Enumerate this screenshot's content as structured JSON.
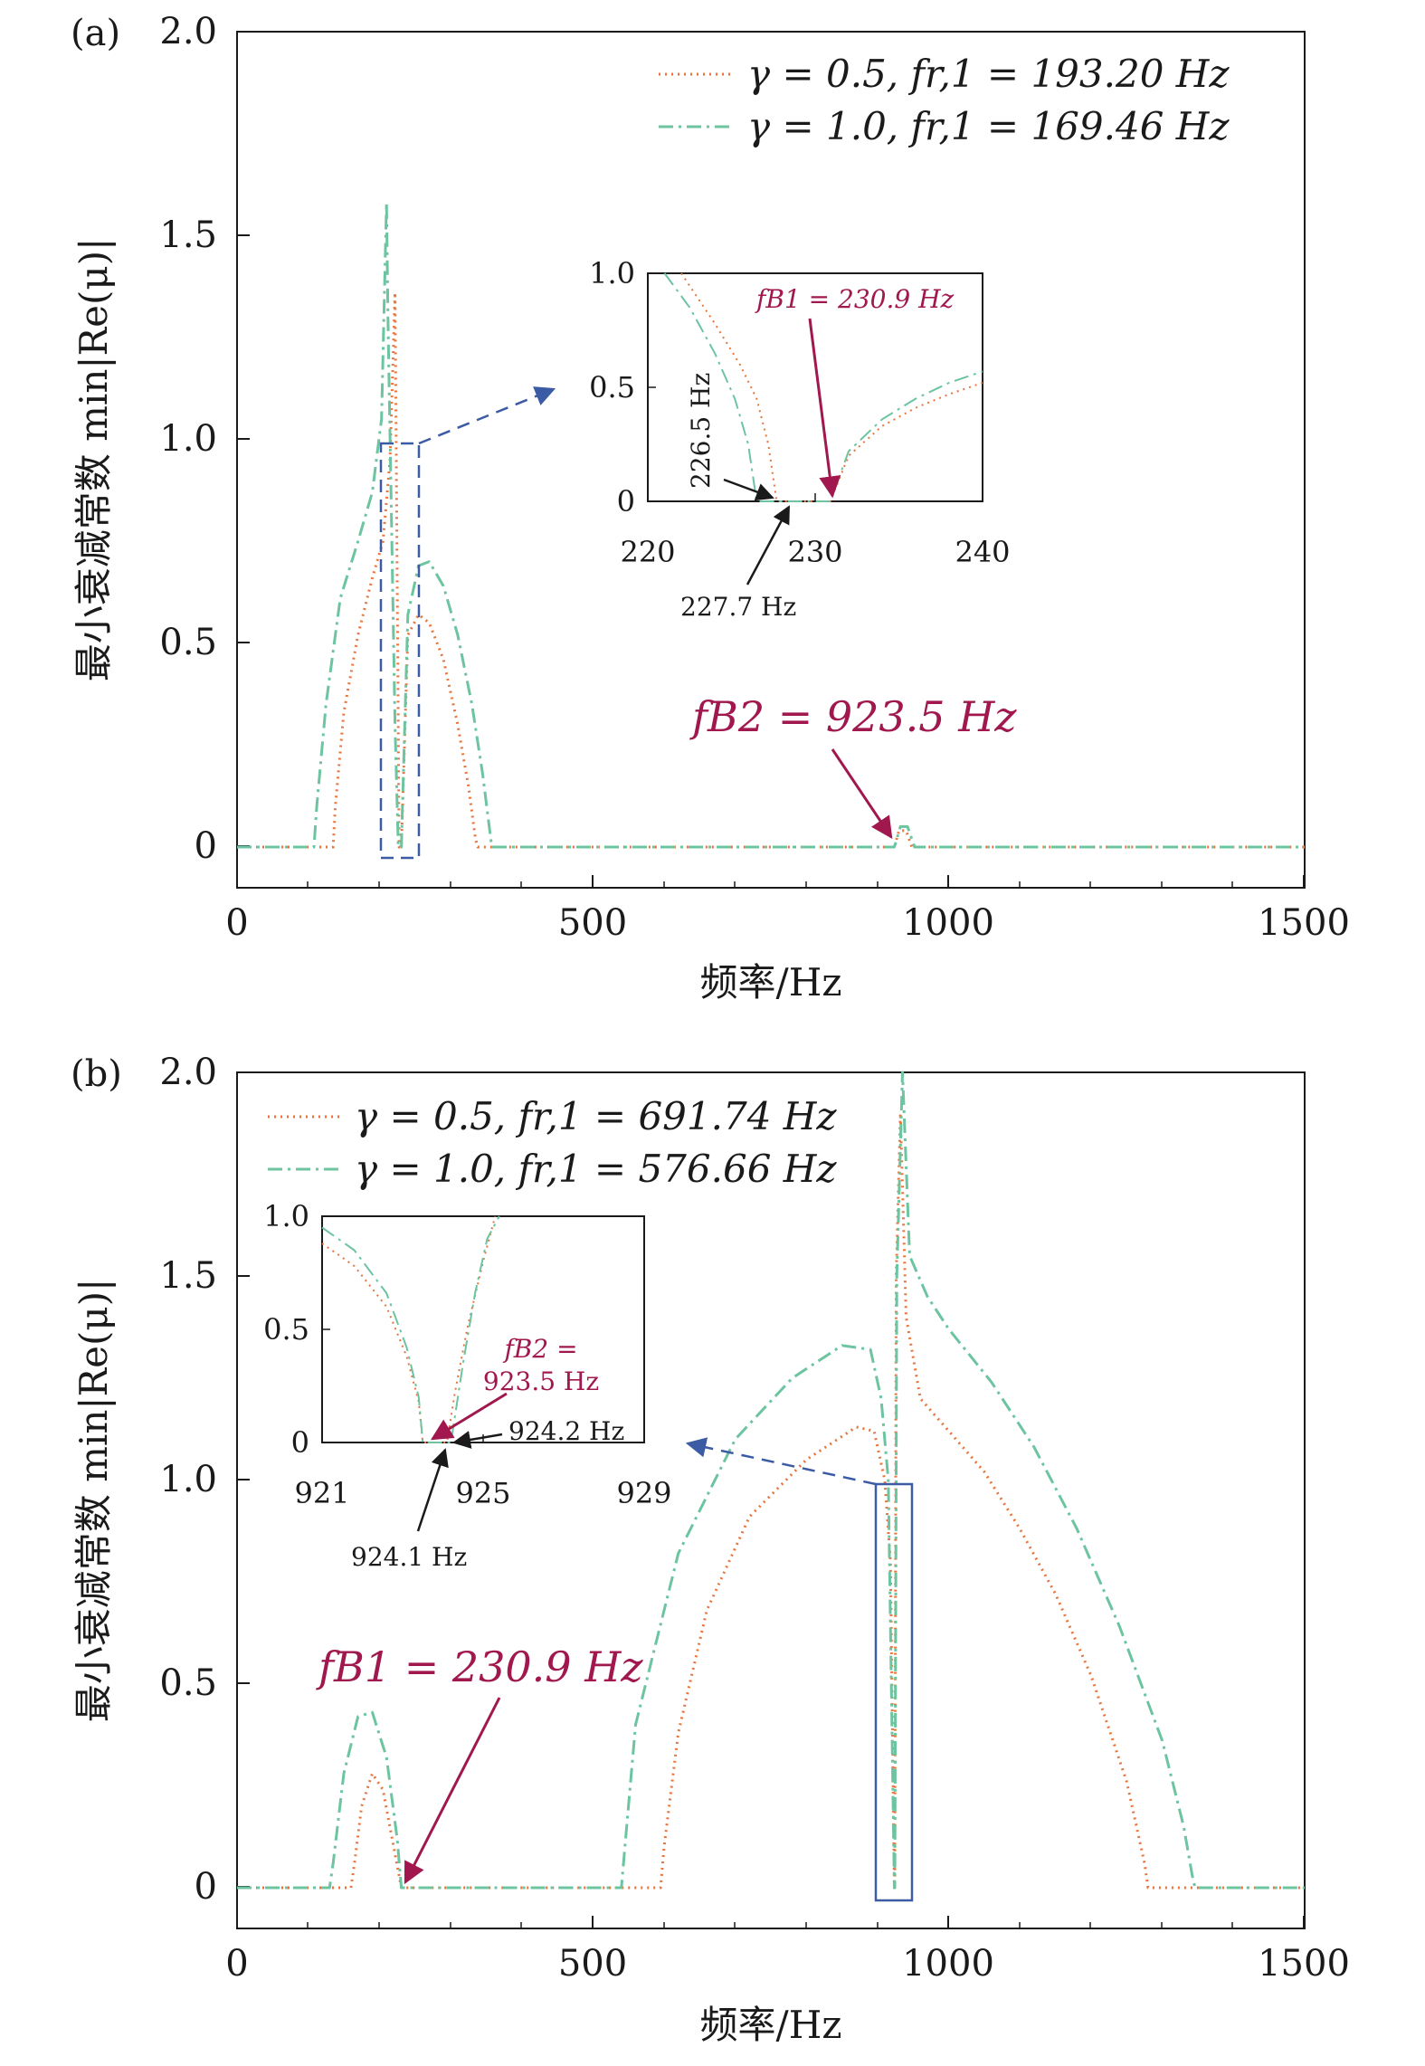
{
  "colors": {
    "series_gamma05": "#e8743b",
    "series_gamma10": "#6cc4a1",
    "box": "#3b5ba5",
    "annotation": "#a0184e",
    "axis": "#1a1a1a"
  },
  "panels": [
    {
      "label": "(a)",
      "xlabel": "频率/Hz",
      "ylabel": "最小衰减常数 min|Re(μ)|",
      "xticks": [
        "0",
        "500",
        "1000",
        "1500"
      ],
      "yticks": [
        "0",
        "0.5",
        "1.0",
        "1.5",
        "2.0"
      ],
      "legend": [
        {
          "series": "gamma05",
          "label": "γ = 0.5,  fr,1 = 193.20 Hz"
        },
        {
          "series": "gamma10",
          "label": "γ = 1.0,  fr,1 = 169.46 Hz"
        }
      ],
      "annotation_main": "fB2 = 923.5 Hz",
      "inset": {
        "xticks": [
          "220",
          "230",
          "240"
        ],
        "yticks": [
          "0",
          "0.5",
          "1.0"
        ],
        "annotation": "fB1 = 230.9 Hz",
        "label_left": "226.5 Hz",
        "label_bottom": "227.7 Hz"
      }
    },
    {
      "label": "(b)",
      "xlabel": "频率/Hz",
      "ylabel": "最小衰减常数 min|Re(μ)|",
      "xticks": [
        "0",
        "500",
        "1000",
        "1500"
      ],
      "yticks": [
        "0",
        "0.5",
        "1.0",
        "1.5",
        "2.0"
      ],
      "legend": [
        {
          "series": "gamma05",
          "label": "γ = 0.5,  fr,1 = 691.74 Hz"
        },
        {
          "series": "gamma10",
          "label": "γ = 1.0,  fr,1 = 576.66 Hz"
        }
      ],
      "annotation_main": "fB1 = 230.9 Hz",
      "inset": {
        "xticks": [
          "921",
          "925",
          "929"
        ],
        "yticks": [
          "0",
          "0.5",
          "1.0"
        ],
        "annotation_line1": "fB2 =",
        "annotation_line2": "923.5 Hz",
        "label_right": "924.2 Hz",
        "label_bottom": "924.1 Hz"
      }
    }
  ],
  "chart_data": [
    {
      "type": "line",
      "panel": "(a)",
      "xlabel": "频率/Hz",
      "ylabel": "最小衰减常数 min|Re(μ)|",
      "xlim": [
        0,
        1500
      ],
      "ylim": [
        -0.1,
        2.0
      ],
      "grid": false,
      "legend_position": "top-right",
      "series": [
        {
          "name": "γ = 0.5,  fr,1 = 193.20 Hz",
          "style": "dotted",
          "x": [
            0,
            135,
            138,
            150,
            170,
            190,
            205,
            215,
            222,
            224,
            226.5,
            227.7,
            230.9,
            240,
            255,
            270,
            290,
            310,
            325,
            335,
            338,
            900,
            923.5,
            930,
            940,
            948,
            1500
          ],
          "y": [
            0,
            0,
            0.1,
            0.33,
            0.52,
            0.66,
            0.75,
            0.95,
            1.36,
            0.9,
            0.3,
            0,
            0,
            0.52,
            0.57,
            0.55,
            0.46,
            0.3,
            0.15,
            0.02,
            0,
            0,
            0,
            0.04,
            0.04,
            0,
            0
          ]
        },
        {
          "name": "γ = 1.0,  fr,1 = 169.46 Hz",
          "style": "dash-dot",
          "x": [
            0,
            108,
            112,
            125,
            145,
            170,
            190,
            203,
            210,
            212,
            218,
            222,
            226.5,
            230.9,
            240,
            255,
            270,
            290,
            310,
            330,
            345,
            355,
            358,
            900,
            923.5,
            932,
            942,
            952,
            1500
          ],
          "y": [
            0,
            0,
            0.1,
            0.35,
            0.61,
            0.75,
            0.87,
            1.05,
            1.58,
            1.3,
            0.7,
            0.3,
            0,
            0,
            0.57,
            0.69,
            0.7,
            0.64,
            0.52,
            0.35,
            0.18,
            0.04,
            0,
            0,
            0,
            0.05,
            0.05,
            0,
            0
          ]
        }
      ],
      "inset": {
        "xlim": [
          220,
          240
        ],
        "ylim": [
          0,
          1.0
        ],
        "series": [
          {
            "name": "γ = 0.5,  fr,1 = 193.20 Hz",
            "x": [
              222,
              224,
              225.5,
              226.5,
              227.2,
              227.7,
              230.9,
              232,
              234,
              236,
              238,
              240
            ],
            "y": [
              1.0,
              0.78,
              0.6,
              0.45,
              0.25,
              0,
              0,
              0.2,
              0.33,
              0.41,
              0.47,
              0.52
            ]
          },
          {
            "name": "γ = 1.0,  fr,1 = 169.46 Hz",
            "x": [
              221,
              222.5,
              224,
              225.2,
              226,
              226.5,
              230.9,
              232,
              234,
              236,
              238,
              240
            ],
            "y": [
              1.0,
              0.85,
              0.65,
              0.45,
              0.25,
              0,
              0,
              0.22,
              0.36,
              0.45,
              0.52,
              0.57
            ]
          }
        ]
      }
    },
    {
      "type": "line",
      "panel": "(b)",
      "xlabel": "频率/Hz",
      "ylabel": "最小衰减常数 min|Re(μ)|",
      "xlim": [
        0,
        1500
      ],
      "ylim": [
        -0.1,
        2.0
      ],
      "grid": false,
      "legend_position": "top-left",
      "series": [
        {
          "name": "γ = 0.5,  fr,1 = 691.74 Hz",
          "style": "dotted",
          "x": [
            0,
            160,
            165,
            175,
            190,
            205,
            220,
            230.9,
            240,
            595,
            600,
            620,
            660,
            720,
            800,
            870,
            895,
            910,
            918,
            923.5,
            924.1,
            926,
            932,
            940,
            960,
            1000,
            1050,
            1100,
            1150,
            1200,
            1250,
            1275,
            1280,
            1500
          ],
          "y": [
            0,
            0,
            0.06,
            0.2,
            0.28,
            0.24,
            0.1,
            0,
            0,
            0,
            0.1,
            0.38,
            0.68,
            0.91,
            1.05,
            1.13,
            1.12,
            1.0,
            0.8,
            0,
            0,
            1.5,
            1.9,
            1.4,
            1.2,
            1.12,
            1.02,
            0.88,
            0.72,
            0.52,
            0.26,
            0.06,
            0,
            0
          ],
          "notes": ""
        },
        {
          "name": "γ = 1.0,  fr,1 = 576.66 Hz",
          "style": "dash-dot",
          "x": [
            0,
            130,
            135,
            150,
            170,
            190,
            210,
            225,
            230.9,
            240,
            540,
            545,
            560,
            620,
            700,
            780,
            850,
            890,
            905,
            915,
            923.5,
            924.2,
            927,
            935,
            945,
            970,
            1000,
            1060,
            1120,
            1180,
            1240,
            1300,
            1330,
            1342,
            1346,
            1500
          ],
          "y": [
            0,
            0,
            0.06,
            0.28,
            0.42,
            0.43,
            0.32,
            0.12,
            0,
            0,
            0,
            0.1,
            0.4,
            0.82,
            1.1,
            1.25,
            1.33,
            1.32,
            1.2,
            1.0,
            0,
            0,
            1.5,
            2.0,
            1.55,
            1.45,
            1.37,
            1.24,
            1.08,
            0.88,
            0.64,
            0.36,
            0.15,
            0.03,
            0,
            0
          ]
        }
      ],
      "inset": {
        "xlim": [
          921,
          929
        ],
        "ylim": [
          0,
          1.0
        ],
        "series": [
          {
            "name": "γ = 0.5,  fr,1 = 691.74 Hz",
            "x": [
              921,
              921.8,
              922.6,
              923.1,
              923.4,
              923.5,
              924.1,
              924.3,
              924.6,
              925,
              925.3
            ],
            "y": [
              0.88,
              0.78,
              0.6,
              0.38,
              0.18,
              0,
              0,
              0.22,
              0.5,
              0.8,
              1.0
            ]
          },
          {
            "name": "γ = 1.0,  fr,1 = 576.66 Hz",
            "x": [
              921,
              921.8,
              922.6,
              923.1,
              923.4,
              923.5,
              924.2,
              924.5,
              924.8,
              925.1,
              925.4
            ],
            "y": [
              0.95,
              0.85,
              0.66,
              0.42,
              0.2,
              0,
              0,
              0.35,
              0.66,
              0.9,
              1.0
            ]
          }
        ]
      }
    }
  ]
}
